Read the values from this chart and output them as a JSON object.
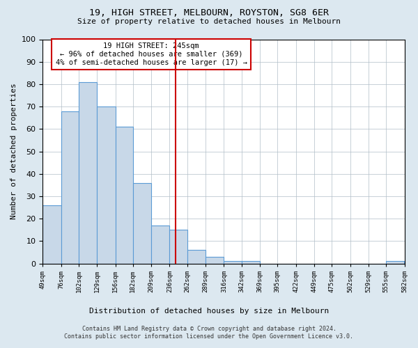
{
  "title": "19, HIGH STREET, MELBOURN, ROYSTON, SG8 6ER",
  "subtitle": "Size of property relative to detached houses in Melbourn",
  "xlabel": "Distribution of detached houses by size in Melbourn",
  "ylabel": "Number of detached properties",
  "bin_edges": [
    49,
    76,
    102,
    129,
    156,
    182,
    209,
    236,
    262,
    289,
    316,
    342,
    369,
    395,
    422,
    449,
    475,
    502,
    529,
    555,
    582
  ],
  "bar_vals": [
    26,
    68,
    81,
    70,
    61,
    36,
    17,
    15,
    6,
    3,
    1,
    1,
    0,
    0,
    0,
    0,
    0,
    0,
    0,
    1
  ],
  "bar_color": "#c8d8e8",
  "bar_edge_color": "#5b9bd5",
  "vline_x": 245,
  "vline_color": "#cc0000",
  "annotation_title": "19 HIGH STREET: 245sqm",
  "annotation_line1": "← 96% of detached houses are smaller (369)",
  "annotation_line2": "4% of semi-detached houses are larger (17) →",
  "annotation_box_color": "#cc0000",
  "ylim": [
    0,
    100
  ],
  "yticks": [
    0,
    10,
    20,
    30,
    40,
    50,
    60,
    70,
    80,
    90,
    100
  ],
  "tick_labels": [
    "49sqm",
    "76sqm",
    "102sqm",
    "129sqm",
    "156sqm",
    "182sqm",
    "209sqm",
    "236sqm",
    "262sqm",
    "289sqm",
    "316sqm",
    "342sqm",
    "369sqm",
    "395sqm",
    "422sqm",
    "449sqm",
    "475sqm",
    "502sqm",
    "529sqm",
    "555sqm",
    "582sqm"
  ],
  "footer_line1": "Contains HM Land Registry data © Crown copyright and database right 2024.",
  "footer_line2": "Contains public sector information licensed under the Open Government Licence v3.0.",
  "bg_color": "#dce8f0",
  "plot_bg_color": "#ffffff"
}
